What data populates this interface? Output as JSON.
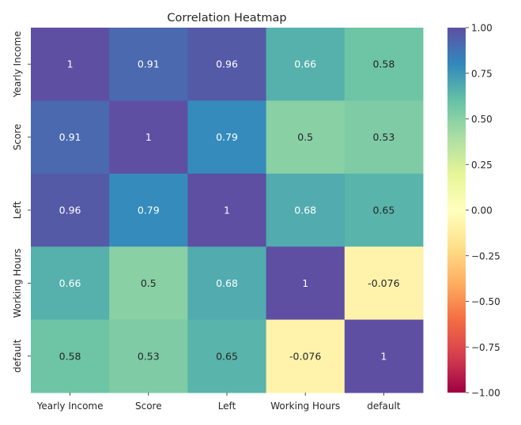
{
  "chart_data": {
    "type": "heatmap",
    "title": "Correlation Heatmap",
    "x_labels": [
      "Yearly Income",
      "Score",
      "Left",
      "Working Hours",
      "default"
    ],
    "y_labels": [
      "Yearly Income",
      "Score",
      "Left",
      "Working Hours",
      "default"
    ],
    "values": [
      [
        1,
        0.91,
        0.96,
        0.66,
        0.58
      ],
      [
        0.91,
        1,
        0.79,
        0.5,
        0.53
      ],
      [
        0.96,
        0.79,
        1,
        0.68,
        0.65
      ],
      [
        0.66,
        0.5,
        0.68,
        1,
        -0.076
      ],
      [
        0.58,
        0.53,
        0.65,
        -0.076,
        1
      ]
    ],
    "annotations": [
      [
        "1",
        "0.91",
        "0.96",
        "0.66",
        "0.58"
      ],
      [
        "0.91",
        "1",
        "0.79",
        "0.5",
        "0.53"
      ],
      [
        "0.96",
        "0.79",
        "1",
        "0.68",
        "0.65"
      ],
      [
        "0.66",
        "0.5",
        "0.68",
        "1",
        "-0.076"
      ],
      [
        "0.58",
        "0.53",
        "0.65",
        "-0.076",
        "1"
      ]
    ],
    "colormap": "Spectral",
    "colorbar": {
      "range": [
        -1,
        1
      ],
      "ticks": [
        1.0,
        0.75,
        0.5,
        0.25,
        0.0,
        -0.25,
        -0.5,
        -0.75,
        -1.0
      ],
      "tick_labels": [
        "1.00",
        "0.75",
        "0.50",
        "0.25",
        "0.00",
        "−0.25",
        "−0.50",
        "−0.75",
        "−1.00"
      ]
    },
    "grid": false
  }
}
